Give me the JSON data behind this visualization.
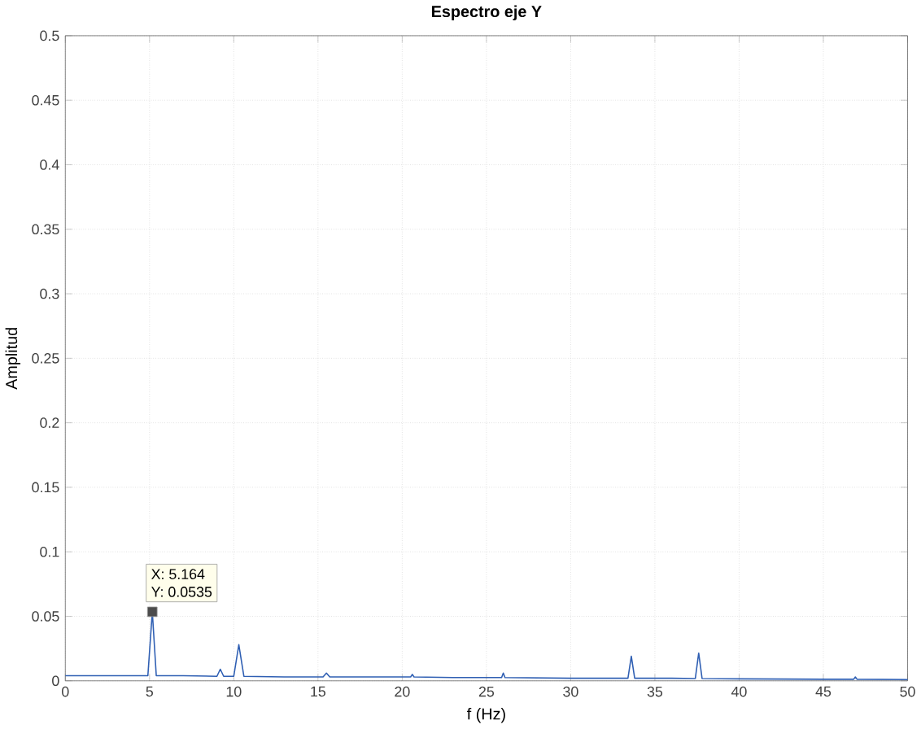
{
  "chart_data": {
    "type": "line",
    "title": "Espectro eje Y",
    "xlabel": "f (Hz)",
    "ylabel": "Amplitud",
    "xlim": [
      0,
      50
    ],
    "ylim": [
      0,
      0.5
    ],
    "xticks": [
      0,
      5,
      10,
      15,
      20,
      25,
      30,
      35,
      40,
      45,
      50
    ],
    "yticks": [
      0,
      0.05,
      0.1,
      0.15,
      0.2,
      0.25,
      0.3,
      0.35,
      0.4,
      0.45,
      0.5
    ],
    "grid": true,
    "marker": "none",
    "series": [
      {
        "color": "#2f5fb3",
        "x": [
          0,
          2,
          4,
          4.9,
          5.164,
          5.4,
          7,
          9,
          9.2,
          9.4,
          10,
          10.3,
          10.6,
          13,
          15.3,
          15.5,
          15.7,
          18,
          20.5,
          20.6,
          20.7,
          23,
          25.9,
          26,
          26.1,
          30,
          33.4,
          33.6,
          33.8,
          36,
          37.4,
          37.6,
          37.8,
          40,
          45,
          46.8,
          46.9,
          47,
          50
        ],
        "values": [
          0.004,
          0.004,
          0.004,
          0.004,
          0.0535,
          0.004,
          0.004,
          0.0035,
          0.009,
          0.0035,
          0.0035,
          0.028,
          0.0035,
          0.003,
          0.003,
          0.006,
          0.003,
          0.003,
          0.003,
          0.005,
          0.003,
          0.0025,
          0.0025,
          0.006,
          0.0025,
          0.002,
          0.002,
          0.019,
          0.002,
          0.002,
          0.0018,
          0.0215,
          0.0018,
          0.0015,
          0.0012,
          0.0012,
          0.003,
          0.0012,
          0.001
        ]
      }
    ],
    "annotations": [
      {
        "text": "X: 5.164",
        "x": 5.164,
        "y": 0.0535
      },
      "Y: 0.0535"
    ]
  }
}
